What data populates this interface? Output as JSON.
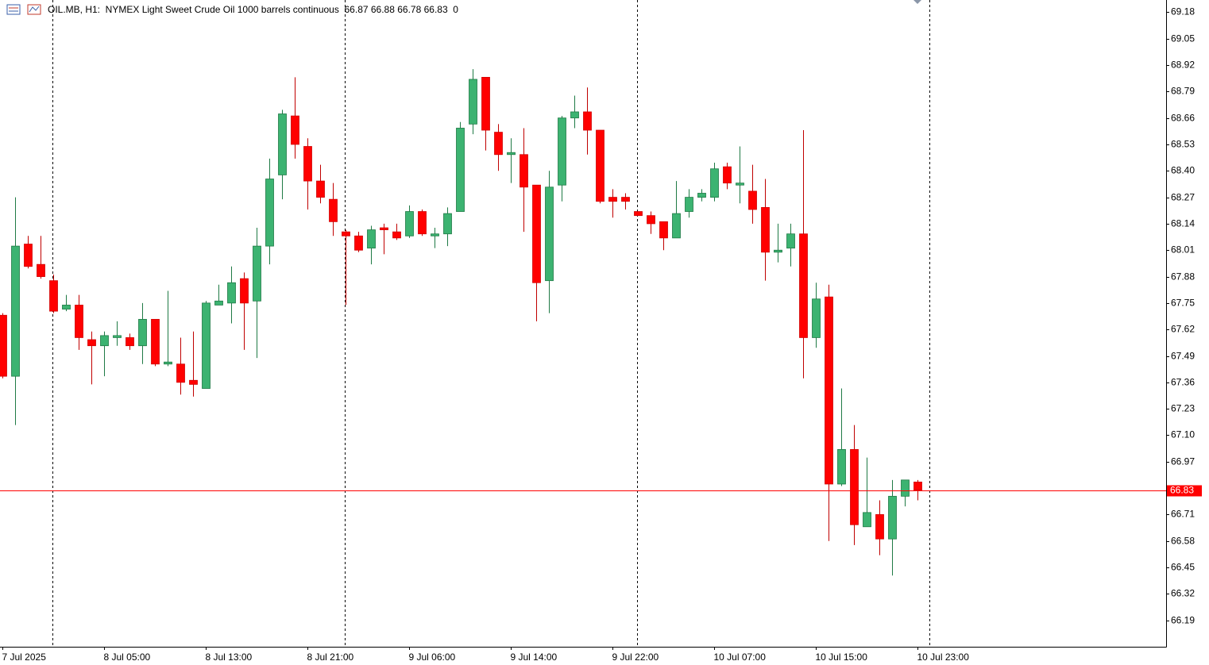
{
  "chart_data": {
    "type": "candlestick",
    "title": "OIL.MB, H1:  NYMEX Light Sweet Crude Oil 1000 barrels continuous  66.87 66.88 66.78 66.83  0",
    "categories": [
      "7 Jul 2025",
      null,
      null,
      null,
      null,
      null,
      null,
      null,
      "8 Jul 05:00",
      null,
      null,
      null,
      null,
      null,
      null,
      null,
      "8 Jul 13:00",
      null,
      null,
      null,
      null,
      null,
      null,
      null,
      "8 Jul 21:00",
      null,
      null,
      null,
      null,
      null,
      null,
      null,
      "9 Jul 06:00",
      null,
      null,
      null,
      null,
      null,
      null,
      null,
      "9 Jul 14:00",
      null,
      null,
      null,
      null,
      null,
      null,
      null,
      "9 Jul 22:00",
      null,
      null,
      null,
      null,
      null,
      null,
      null,
      "10 Jul 07:00",
      null,
      null,
      null,
      null,
      null,
      null,
      null,
      "10 Jul 15:00",
      null,
      null,
      null,
      null,
      null,
      null,
      null,
      "10 Jul 23:00"
    ],
    "open": [
      67.69,
      67.39,
      68.04,
      67.94,
      67.86,
      67.72,
      67.74,
      67.57,
      67.54,
      67.58,
      67.58,
      67.54,
      67.67,
      67.45,
      67.45,
      67.37,
      67.33,
      67.74,
      67.75,
      67.87,
      67.76,
      68.03,
      68.38,
      68.67,
      68.52,
      68.35,
      68.26,
      68.1,
      68.08,
      68.02,
      68.12,
      68.1,
      68.08,
      68.2,
      68.08,
      68.09,
      68.2,
      68.63,
      68.86,
      68.59,
      68.48,
      68.48,
      68.33,
      67.86,
      68.33,
      68.66,
      68.69,
      68.6,
      68.27,
      68.27,
      68.2,
      68.18,
      68.15,
      68.07,
      68.2,
      68.27,
      68.27,
      68.42,
      68.33,
      68.3,
      68.22,
      68.0,
      68.02,
      68.09,
      67.58,
      67.78,
      66.86,
      67.03,
      66.65,
      66.71,
      66.59,
      66.8,
      66.87
    ],
    "high": [
      67.7,
      68.27,
      68.08,
      68.08,
      67.89,
      67.79,
      67.79,
      67.61,
      67.61,
      67.66,
      67.6,
      67.75,
      67.67,
      67.81,
      67.58,
      67.61,
      67.76,
      67.84,
      67.93,
      67.9,
      68.12,
      68.46,
      68.7,
      68.86,
      68.56,
      68.43,
      68.34,
      68.11,
      68.1,
      68.13,
      68.14,
      68.14,
      68.23,
      68.21,
      68.12,
      68.22,
      68.64,
      68.9,
      68.86,
      68.63,
      68.56,
      68.61,
      68.33,
      68.4,
      68.67,
      68.77,
      68.81,
      68.6,
      68.31,
      68.29,
      68.2,
      68.2,
      68.15,
      68.35,
      68.31,
      68.31,
      68.44,
      68.44,
      68.52,
      68.43,
      68.36,
      68.14,
      68.14,
      68.6,
      67.85,
      67.84,
      67.33,
      67.15,
      66.99,
      66.78,
      66.88,
      66.88,
      66.88
    ],
    "low": [
      67.38,
      67.15,
      67.92,
      67.87,
      67.7,
      67.71,
      67.52,
      67.35,
      67.39,
      67.54,
      67.52,
      67.45,
      67.44,
      67.44,
      67.3,
      67.29,
      67.33,
      67.74,
      67.65,
      67.52,
      67.48,
      67.94,
      68.26,
      68.46,
      68.21,
      68.24,
      68.08,
      67.74,
      68.0,
      67.94,
      67.99,
      68.06,
      68.07,
      68.08,
      68.02,
      68.03,
      68.2,
      68.58,
      68.5,
      68.4,
      68.34,
      68.1,
      67.66,
      67.7,
      68.25,
      68.61,
      68.48,
      68.24,
      68.17,
      68.21,
      68.18,
      68.09,
      68.01,
      68.07,
      68.17,
      68.25,
      68.25,
      68.31,
      68.24,
      68.14,
      67.86,
      67.95,
      67.93,
      67.38,
      67.53,
      66.58,
      66.85,
      66.56,
      66.65,
      66.51,
      66.41,
      66.75,
      66.78
    ],
    "close": [
      67.39,
      68.03,
      67.93,
      67.88,
      67.71,
      67.74,
      67.58,
      67.54,
      67.59,
      67.59,
      67.54,
      67.67,
      67.45,
      67.46,
      67.36,
      67.35,
      67.75,
      67.76,
      67.85,
      67.75,
      68.03,
      68.36,
      68.68,
      68.53,
      68.35,
      68.27,
      68.15,
      68.08,
      68.01,
      68.11,
      68.11,
      68.07,
      68.2,
      68.09,
      68.09,
      68.19,
      68.61,
      68.85,
      68.6,
      68.48,
      68.49,
      68.32,
      67.85,
      68.32,
      68.66,
      68.69,
      68.6,
      68.25,
      68.25,
      68.25,
      68.18,
      68.14,
      68.07,
      68.19,
      68.27,
      68.29,
      68.41,
      68.34,
      68.34,
      68.21,
      68.0,
      68.01,
      68.09,
      67.58,
      67.77,
      66.86,
      67.03,
      66.66,
      66.72,
      66.59,
      66.8,
      66.88,
      66.83
    ],
    "up_color": "#3cb371",
    "down_color": "#ff0000",
    "last_price": 66.83,
    "last_price_color": "#ff0000",
    "ylim": [
      66.06,
      69.24
    ],
    "yticks": [
      69.18,
      69.05,
      68.92,
      68.79,
      68.66,
      68.53,
      {
        "value": 68.4,
        "label": "68.40"
      },
      68.27,
      68.14,
      68.01,
      67.88,
      67.75,
      67.62,
      67.49,
      67.36,
      67.23,
      {
        "value": 67.1,
        "label": "67.10"
      },
      66.97,
      66.71,
      66.58,
      66.45,
      66.32,
      66.19
    ]
  }
}
